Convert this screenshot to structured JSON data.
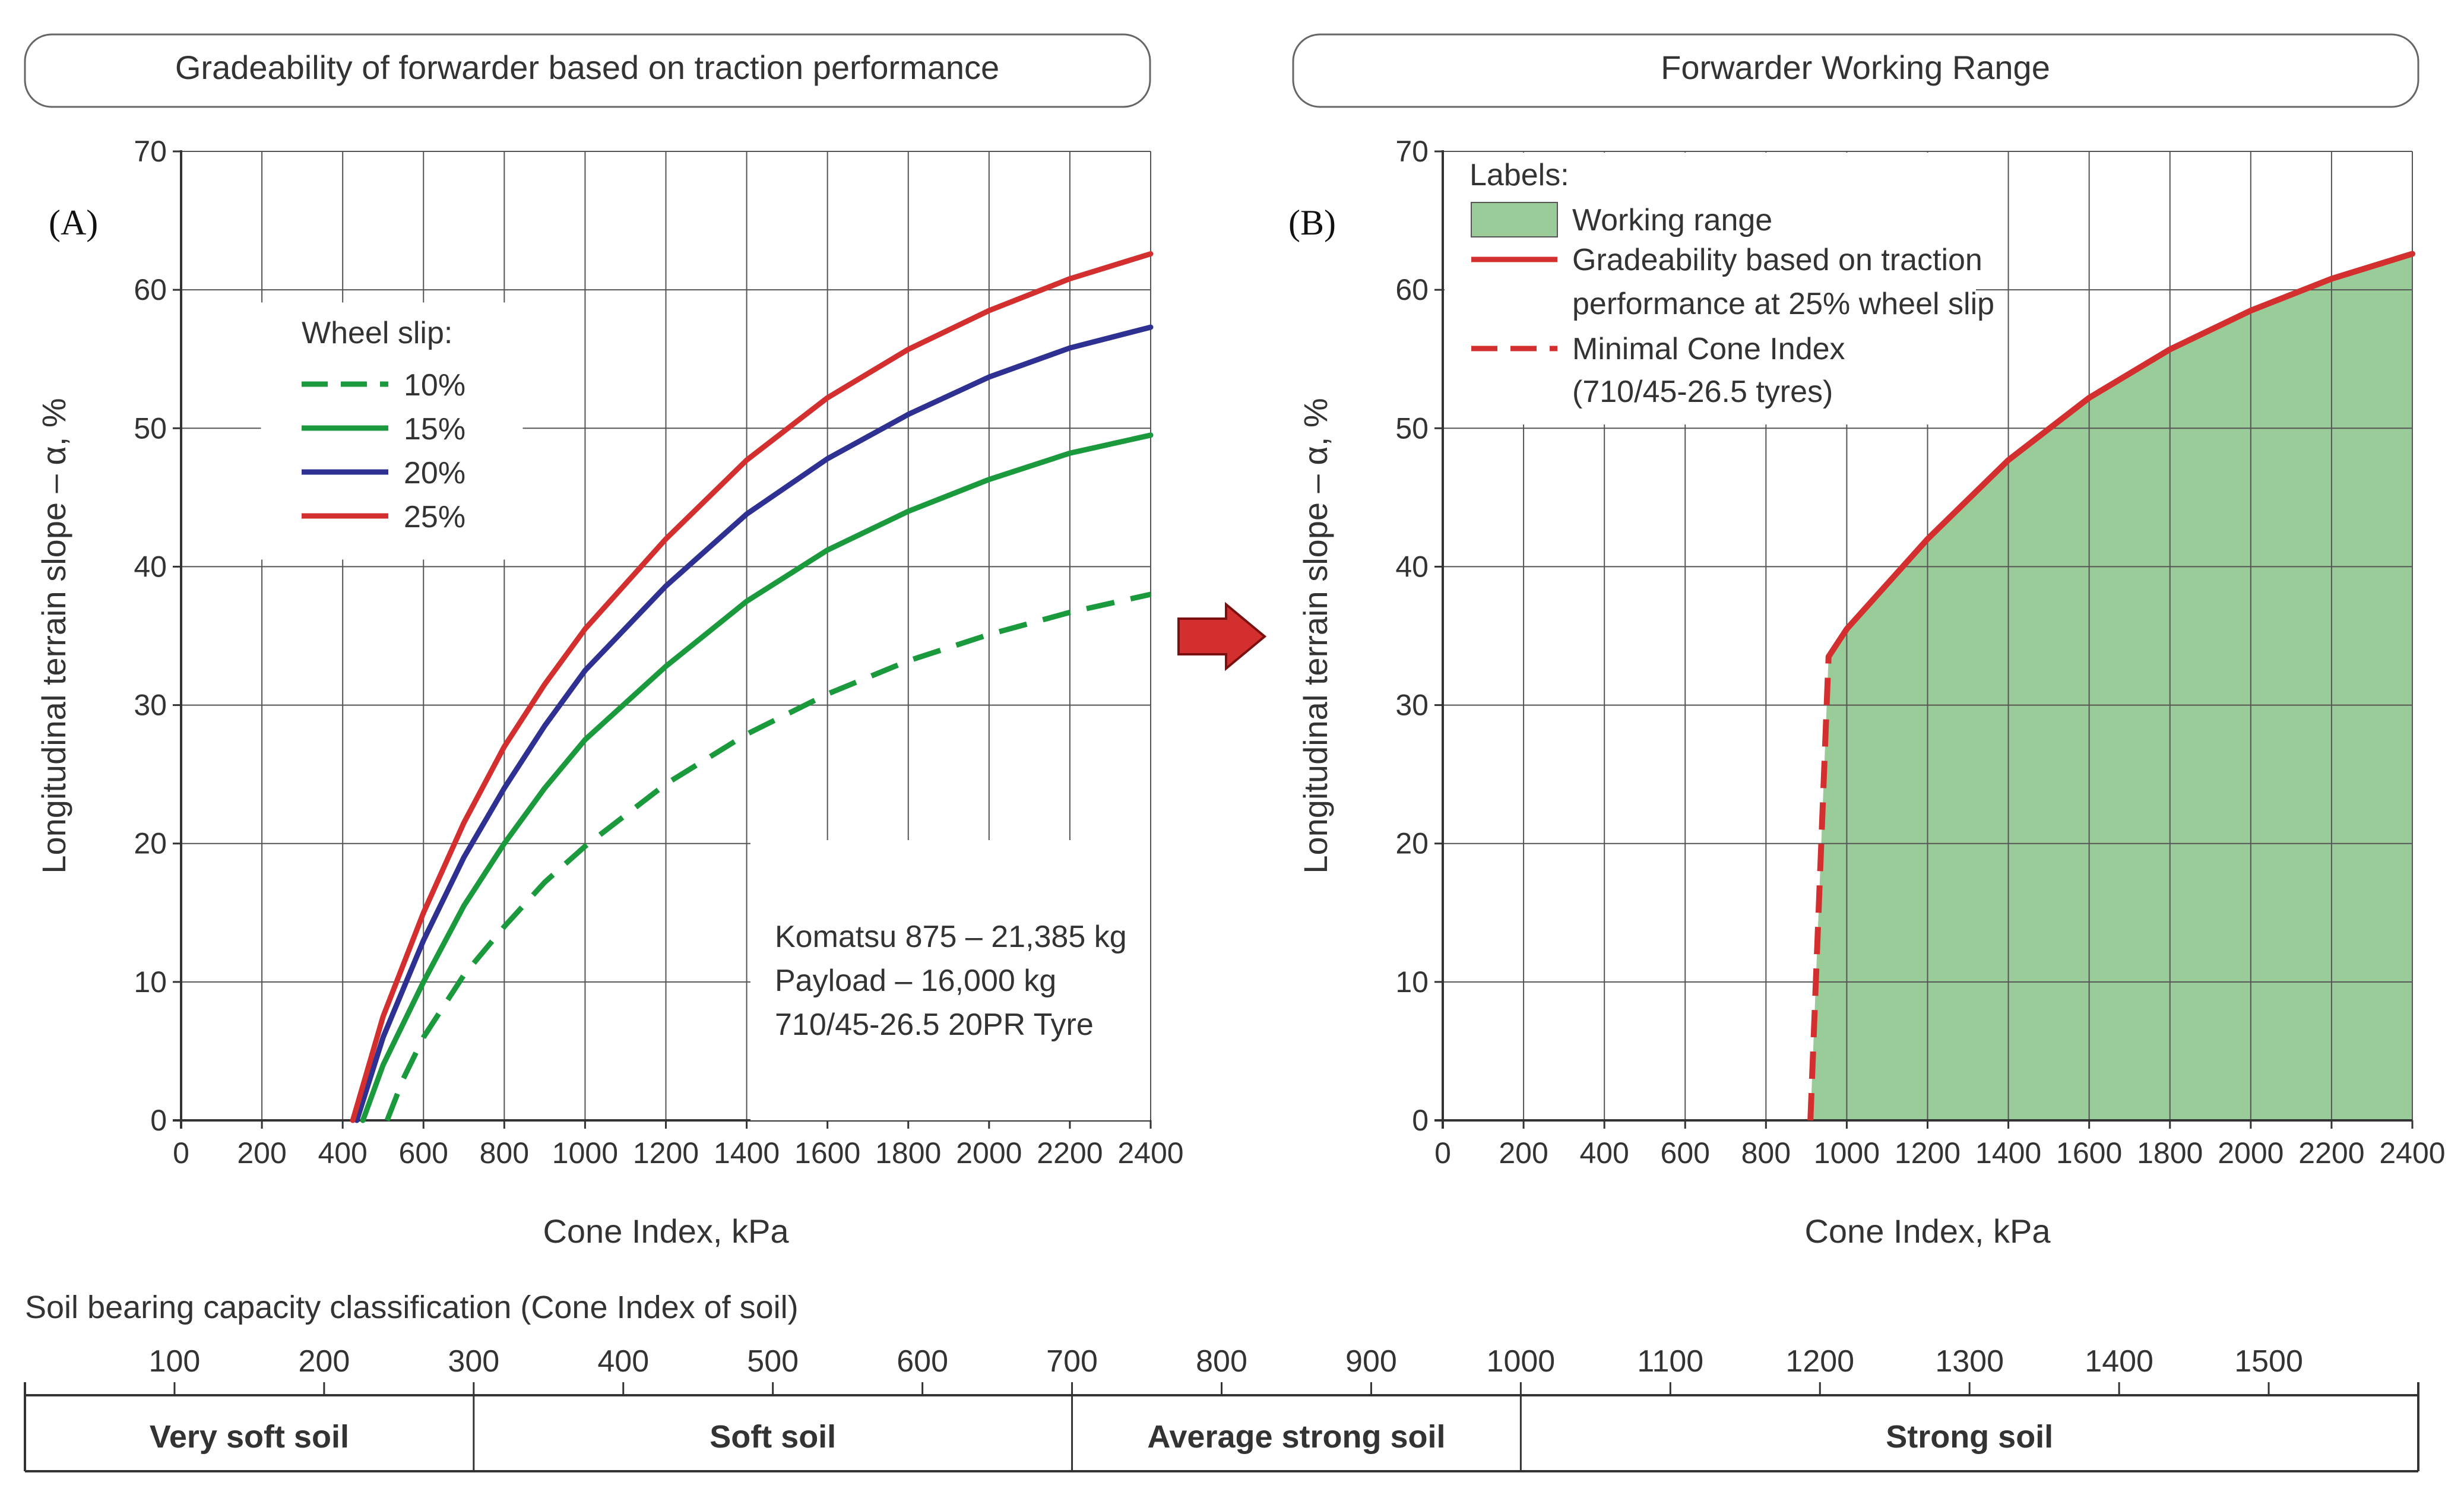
{
  "chart_data": [
    {
      "type": "line",
      "panel_label": "(A)",
      "title": "Gradeability of forwarder based on traction performance",
      "xlabel": "Cone Index, kPa",
      "ylabel": "Longitudinal terrain slope  –  α, %",
      "xlim": [
        0,
        2400
      ],
      "ylim": [
        0,
        70
      ],
      "xticks": [
        0,
        200,
        400,
        600,
        800,
        1000,
        1200,
        1400,
        1600,
        1800,
        2000,
        2200,
        2400
      ],
      "yticks": [
        0,
        10,
        20,
        30,
        40,
        50,
        60,
        70
      ],
      "grid": true,
      "legend": {
        "title": "Wheel slip:",
        "position": "top-left",
        "entries": [
          "10%",
          "15%",
          "20%",
          "25%"
        ]
      },
      "series": [
        {
          "name": "10%",
          "color": "#1a9a3c",
          "dash": true,
          "x": [
            510,
            550,
            600,
            700,
            800,
            900,
            1000,
            1200,
            1400,
            1600,
            1800,
            2000,
            2200,
            2400
          ],
          "y": [
            0,
            3,
            6,
            10.5,
            14,
            17.2,
            19.8,
            24.3,
            27.9,
            30.8,
            33.2,
            35.1,
            36.7,
            38
          ]
        },
        {
          "name": "15%",
          "color": "#1a9a3c",
          "dash": false,
          "x": [
            450,
            500,
            600,
            700,
            800,
            900,
            1000,
            1200,
            1400,
            1600,
            1800,
            2000,
            2200,
            2400
          ],
          "y": [
            0,
            4,
            10,
            15.5,
            20,
            24,
            27.5,
            32.8,
            37.5,
            41.2,
            44,
            46.3,
            48.2,
            49.5
          ]
        },
        {
          "name": "20%",
          "color": "#2e3192",
          "dash": false,
          "x": [
            435,
            500,
            600,
            700,
            800,
            900,
            1000,
            1200,
            1400,
            1600,
            1800,
            2000,
            2200,
            2400
          ],
          "y": [
            0,
            6,
            13,
            19,
            24,
            28.5,
            32.5,
            38.6,
            43.8,
            47.8,
            51,
            53.7,
            55.8,
            57.3
          ]
        },
        {
          "name": "25%",
          "color": "#d32f2f",
          "dash": false,
          "x": [
            425,
            500,
            600,
            700,
            800,
            900,
            1000,
            1200,
            1400,
            1600,
            1800,
            2000,
            2200,
            2400
          ],
          "y": [
            0,
            7.5,
            15,
            21.5,
            27,
            31.5,
            35.5,
            42,
            47.7,
            52.2,
            55.7,
            58.5,
            60.8,
            62.6
          ]
        }
      ],
      "annotation": [
        "Komatsu 875 – 21,385 kg",
        "Payload – 16,000 kg",
        "710/45-26.5 20PR Tyre"
      ]
    },
    {
      "type": "area",
      "panel_label": "(B)",
      "title": "Forwarder Working Range",
      "xlabel": "Cone Index, kPa",
      "ylabel": "Longitudinal terrain slope  –  α, %",
      "xlim": [
        0,
        2400
      ],
      "ylim": [
        0,
        70
      ],
      "xticks": [
        0,
        200,
        400,
        600,
        800,
        1000,
        1200,
        1400,
        1600,
        1800,
        2000,
        2200,
        2400
      ],
      "yticks": [
        0,
        10,
        20,
        30,
        40,
        50,
        60,
        70
      ],
      "grid": true,
      "legend": {
        "title": "Labels:",
        "position": "top-left",
        "entries": [
          {
            "label": "Working range",
            "swatch": "#99cc99"
          },
          {
            "label": "Gradeability based on traction",
            "label2": "performance at 25% wheel slip",
            "color": "#d32f2f",
            "dash": false
          },
          {
            "label": "Minimal Cone Index",
            "label2": "(710/45-26.5 tyres)",
            "color": "#d32f2f",
            "dash": true
          }
        ]
      },
      "gradeability_25": {
        "x": [
          955,
          1000,
          1200,
          1400,
          1600,
          1800,
          2000,
          2200,
          2400
        ],
        "y": [
          33.5,
          35.5,
          42,
          47.7,
          52.2,
          55.7,
          58.5,
          60.8,
          62.6
        ]
      },
      "min_cone_index": {
        "x": [
          910,
          955
        ],
        "y": [
          0,
          33.5
        ]
      },
      "fill_color": "#99cc99"
    }
  ],
  "arrow_color": "#d32f2f",
  "soil_scale": {
    "title": "Soil bearing capacity classification (Cone Index of soil)",
    "ticks": [
      100,
      200,
      300,
      400,
      500,
      600,
      700,
      800,
      900,
      1000,
      1100,
      1200,
      1300,
      1400,
      1500
    ],
    "range": [
      0,
      1600
    ],
    "classes": [
      {
        "label": "Very soft soil",
        "from": 0,
        "to": 300
      },
      {
        "label": "Soft soil",
        "from": 300,
        "to": 700
      },
      {
        "label": "Average strong soil",
        "from": 700,
        "to": 1000
      },
      {
        "label": "Strong soil",
        "from": 1000,
        "to": 1600
      }
    ]
  }
}
